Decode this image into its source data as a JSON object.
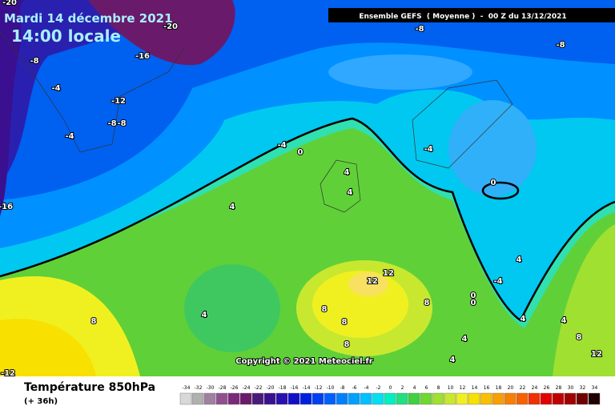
{
  "header": {
    "title": "Mardi 14 décembre 2021",
    "time": "14:00 locale",
    "run": "Ensemble GEFS  ( Moyenne )  -  00 Z du 13/12/2021"
  },
  "map": {
    "copyright": "Copyright © 2021 Meteociel.fr",
    "contour_labels": [
      -20,
      -20,
      -8,
      -8,
      -8,
      -16,
      -4,
      -12,
      -8,
      -8,
      -4,
      -4,
      0,
      -4,
      4,
      4,
      0,
      -16,
      4,
      4,
      12,
      12,
      -4,
      8,
      8,
      0,
      0,
      4,
      8,
      8,
      8,
      4,
      4,
      8,
      4,
      12,
      4,
      -12
    ]
  },
  "footer": {
    "variable": "Température 850hPa",
    "lead": "(+ 36h)"
  },
  "legend": {
    "labels": [
      -34,
      -32,
      -30,
      -28,
      -26,
      -24,
      -22,
      -20,
      -18,
      -16,
      -14,
      -12,
      -10,
      -8,
      -6,
      -4,
      -2,
      0,
      2,
      4,
      6,
      8,
      10,
      12,
      14,
      16,
      18,
      20,
      22,
      24,
      26,
      28,
      30,
      32,
      34
    ],
    "colors": [
      "#d8d8d8",
      "#b0b0b0",
      "#a080a0",
      "#905090",
      "#7a2a7a",
      "#6a1a6a",
      "#4a1a7a",
      "#3a1090",
      "#2a10b0",
      "#1010c8",
      "#0020e0",
      "#0040f0",
      "#0060ff",
      "#0080ff",
      "#00a0ff",
      "#00c0ff",
      "#00e0f0",
      "#00f0c0",
      "#20e080",
      "#40d040",
      "#70d830",
      "#a0e030",
      "#c8e830",
      "#f0f020",
      "#f8e000",
      "#f8c000",
      "#f8a000",
      "#f88000",
      "#f86000",
      "#f03000",
      "#e00000",
      "#c00000",
      "#a00000",
      "#700000",
      "#200000"
    ]
  }
}
